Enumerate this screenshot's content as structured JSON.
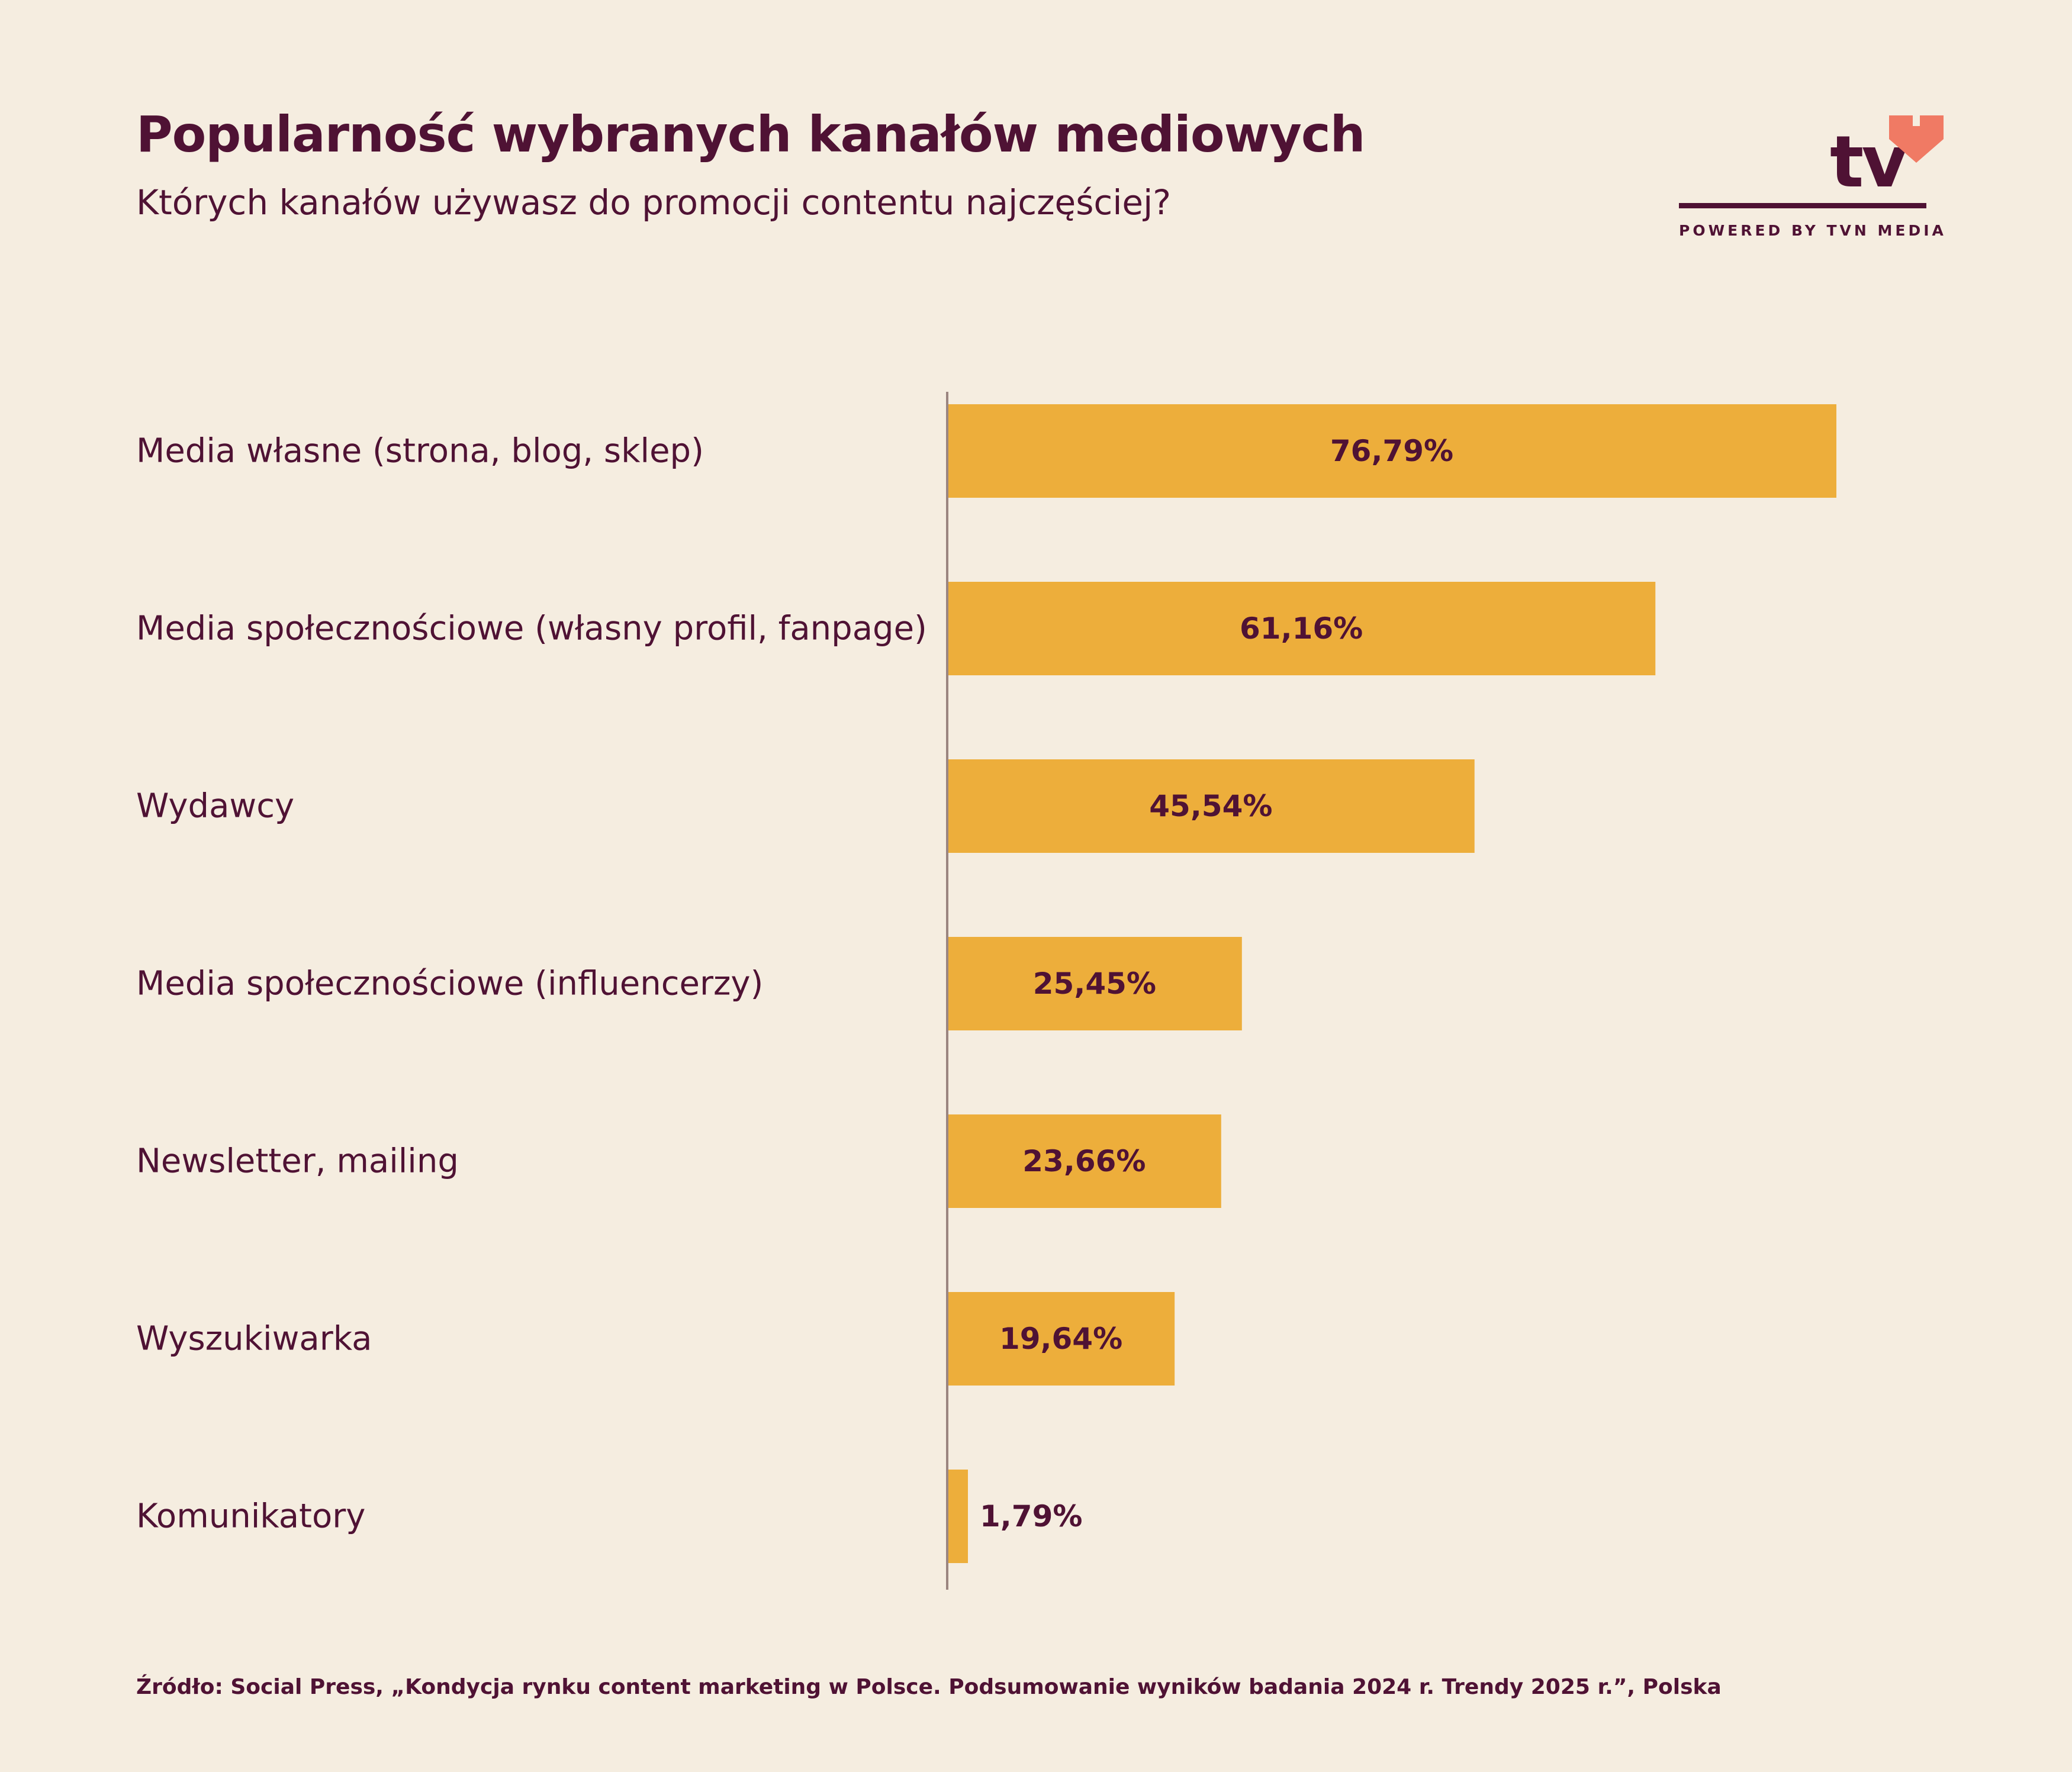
{
  "title": "Popularność wybranych kanałów mediowych",
  "subtitle": "Których kanałów używasz do promocji contentu najczęściej?",
  "logo": {
    "text": "tv",
    "caption": "POWERED BY TVN MEDIA",
    "heart_icon": "heart-icon",
    "heart_color": "#f07a64"
  },
  "colors": {
    "background": "#f5ede0",
    "bar": "#edae3b",
    "text": "#4f1234",
    "axis": "#9b8580"
  },
  "chart_data": {
    "type": "bar",
    "orientation": "horizontal",
    "categories": [
      "Media własne (strona, blog, sklep)",
      "Media społecznościowe (własny profil, fanpage)",
      "Wydawcy",
      "Media społecznościowe (influencerzy)",
      "Newsletter, mailing",
      "Wyszukiwarka",
      "Komunikatory"
    ],
    "values": [
      76.79,
      61.16,
      45.54,
      25.45,
      23.66,
      19.64,
      1.79
    ],
    "value_labels": [
      "76,79%",
      "61,16%",
      "45,54%",
      "25,45%",
      "23,66%",
      "19,64%",
      "1,79%"
    ],
    "unit": "%",
    "grid": false,
    "legend": "none"
  },
  "source": "Źródło: Social Press, „Kondycja rynku content marketing w Polsce. Podsumowanie wyników badania 2024 r. Trendy 2025 r.”, Polska"
}
